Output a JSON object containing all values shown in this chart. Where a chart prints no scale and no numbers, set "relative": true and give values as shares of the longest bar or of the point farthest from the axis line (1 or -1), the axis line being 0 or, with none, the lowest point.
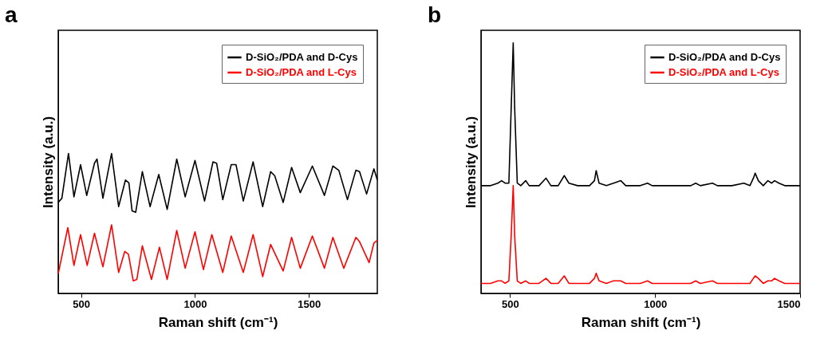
{
  "chart_data": [
    {
      "type": "line",
      "title": "a",
      "xlabel": "Raman shift (cm⁻¹)",
      "ylabel": "Intensity (a.u.)",
      "relative": true,
      "legend": "top right",
      "grid": false,
      "xlim": [
        400,
        1800
      ],
      "xticks": [
        500,
        1000,
        1500
      ],
      "series": [
        {
          "name": "D-SiO₂/PDA and D-Cys",
          "color": "#000000",
          "x": [
            400,
            416,
            445,
            469,
            498,
            525,
            559,
            570,
            596,
            634,
            665,
            695,
            710,
            724,
            740,
            769,
            803,
            841,
            878,
            920,
            957,
            1000,
            1042,
            1079,
            1095,
            1122,
            1159,
            1180,
            1212,
            1255,
            1297,
            1332,
            1350,
            1387,
            1424,
            1462,
            1515,
            1568,
            1605,
            1631,
            1669,
            1706,
            1722,
            1753,
            1785,
            1800
          ],
          "values": [
            0.65,
            0.68,
            1.0,
            0.69,
            0.92,
            0.7,
            0.93,
            0.96,
            0.68,
            1.0,
            0.62,
            0.81,
            0.79,
            0.59,
            0.58,
            0.87,
            0.62,
            0.85,
            0.6,
            0.96,
            0.69,
            0.95,
            0.66,
            0.94,
            0.93,
            0.67,
            0.92,
            0.92,
            0.66,
            0.94,
            0.62,
            0.87,
            0.84,
            0.65,
            0.9,
            0.72,
            0.91,
            0.7,
            0.91,
            0.88,
            0.67,
            0.88,
            0.87,
            0.71,
            0.89,
            0.81
          ]
        },
        {
          "name": "D-SiO₂/PDA and L-Cys",
          "color": "#ff0000",
          "x": [
            400,
            442,
            469,
            498,
            527,
            559,
            596,
            634,
            665,
            692,
            708,
            729,
            745,
            769,
            809,
            844,
            878,
            920,
            957,
            1000,
            1037,
            1074,
            1122,
            1159,
            1212,
            1255,
            1297,
            1332,
            1387,
            1424,
            1462,
            1515,
            1568,
            1605,
            1653,
            1706,
            1722,
            1764,
            1785,
            1800
          ],
          "values": [
            0.14,
            0.47,
            0.2,
            0.42,
            0.2,
            0.43,
            0.19,
            0.49,
            0.15,
            0.3,
            0.28,
            0.09,
            0.1,
            0.34,
            0.1,
            0.33,
            0.1,
            0.45,
            0.18,
            0.44,
            0.17,
            0.42,
            0.15,
            0.41,
            0.15,
            0.42,
            0.12,
            0.35,
            0.16,
            0.4,
            0.18,
            0.41,
            0.18,
            0.4,
            0.18,
            0.4,
            0.37,
            0.22,
            0.36,
            0.38
          ]
        }
      ]
    },
    {
      "type": "line",
      "title": "b",
      "xlabel": "Raman shift (cm⁻¹)",
      "ylabel": "Intensity (a.u.)",
      "relative": true,
      "legend": "top right",
      "grid": false,
      "xlim": [
        400,
        1500
      ],
      "xticks": [
        500,
        1000,
        1500
      ],
      "series": [
        {
          "name": "D-SiO₂/PDA and D-Cys",
          "color": "#000000",
          "x": [
            400,
            433,
            458,
            471,
            483,
            496,
            504,
            511,
            516,
            525,
            537,
            554,
            566,
            600,
            624,
            641,
            666,
            687,
            703,
            733,
            774,
            791,
            797,
            807,
            832,
            857,
            882,
            899,
            949,
            974,
            990,
            1032,
            1090,
            1123,
            1140,
            1156,
            1198,
            1215,
            1265,
            1306,
            1327,
            1339,
            1345,
            1356,
            1373,
            1389,
            1402,
            1412,
            1427,
            1447,
            1472,
            1500
          ],
          "values": [
            0.43,
            0.43,
            0.44,
            0.45,
            0.44,
            0.44,
            0.74,
            1.0,
            0.74,
            0.44,
            0.43,
            0.45,
            0.43,
            0.43,
            0.46,
            0.43,
            0.43,
            0.47,
            0.44,
            0.43,
            0.43,
            0.45,
            0.49,
            0.44,
            0.43,
            0.44,
            0.45,
            0.43,
            0.43,
            0.44,
            0.43,
            0.43,
            0.43,
            0.43,
            0.44,
            0.43,
            0.44,
            0.43,
            0.43,
            0.44,
            0.43,
            0.46,
            0.48,
            0.45,
            0.43,
            0.45,
            0.44,
            0.45,
            0.44,
            0.43,
            0.43,
            0.43
          ]
        },
        {
          "name": "D-SiO₂/PDA and L-Cys",
          "color": "#ff0000",
          "x": [
            400,
            433,
            458,
            471,
            483,
            496,
            504,
            511,
            516,
            525,
            537,
            554,
            566,
            600,
            624,
            641,
            666,
            687,
            703,
            733,
            774,
            791,
            797,
            807,
            832,
            857,
            882,
            899,
            949,
            974,
            990,
            1032,
            1090,
            1123,
            1140,
            1156,
            1198,
            1215,
            1265,
            1306,
            1327,
            1339,
            1345,
            1356,
            1373,
            1389,
            1402,
            1412,
            1427,
            1447,
            1472,
            1500
          ],
          "values": [
            0.04,
            0.04,
            0.05,
            0.05,
            0.04,
            0.05,
            0.23,
            0.43,
            0.23,
            0.05,
            0.04,
            0.05,
            0.04,
            0.04,
            0.06,
            0.04,
            0.04,
            0.07,
            0.04,
            0.04,
            0.04,
            0.06,
            0.08,
            0.05,
            0.04,
            0.05,
            0.05,
            0.04,
            0.04,
            0.05,
            0.04,
            0.04,
            0.04,
            0.04,
            0.05,
            0.04,
            0.05,
            0.04,
            0.04,
            0.04,
            0.04,
            0.06,
            0.07,
            0.06,
            0.04,
            0.05,
            0.05,
            0.06,
            0.05,
            0.04,
            0.04,
            0.04
          ]
        }
      ]
    }
  ]
}
